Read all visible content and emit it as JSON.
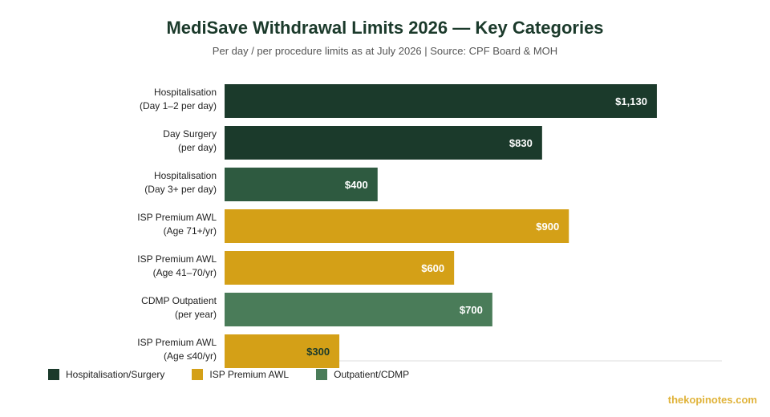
{
  "chart_data": {
    "type": "bar",
    "orientation": "horizontal",
    "title": "MediSave Withdrawal Limits 2026 — Key Categories",
    "subtitle": "Per day / per procedure limits as at July 2026 | Source: CPF Board & MOH",
    "categories": [
      [
        "Hospitalisation",
        "(Day 1–2 per day)"
      ],
      [
        "Day Surgery",
        "(per day)"
      ],
      [
        "Hospitalisation",
        "(Day 3+ per day)"
      ],
      [
        "ISP Premium AWL",
        "(Age 71+/yr)"
      ],
      [
        "ISP Premium AWL",
        "(Age 41–70/yr)"
      ],
      [
        "CDMP Outpatient",
        "(per year)"
      ],
      [
        "ISP Premium AWL",
        "(Age ≤40/yr)"
      ]
    ],
    "values": [
      1130,
      830,
      400,
      900,
      600,
      700,
      300
    ],
    "labels": [
      "$1,130",
      "$830",
      "$400",
      "$900",
      "$600",
      "$700",
      "$300"
    ],
    "groups": [
      "Hospitalisation/Surgery",
      "Hospitalisation/Surgery",
      "Outpatient/CDMP",
      "ISP Premium AWL",
      "ISP Premium AWL",
      "Outpatient/CDMP",
      "ISP Premium AWL"
    ],
    "xlim": [
      0,
      1300
    ],
    "grid": false,
    "legend_placement": "bottom-left"
  },
  "legend": [
    {
      "name": "Hospitalisation/Surgery",
      "color": "#1b3a2b"
    },
    {
      "name": "ISP Premium AWL",
      "color": "#d4a017"
    },
    {
      "name": "Outpatient/CDMP",
      "color": "#4a7c59"
    }
  ],
  "colors": {
    "Hospitalisation/Surgery": "#1b3a2b",
    "ISP Premium AWL": "#d4a017",
    "Outpatient/CDMP": "#4a7c59",
    "Outpatient/CDMP_dark": "#2e5a40"
  },
  "watermark": "thekopinotes.com"
}
